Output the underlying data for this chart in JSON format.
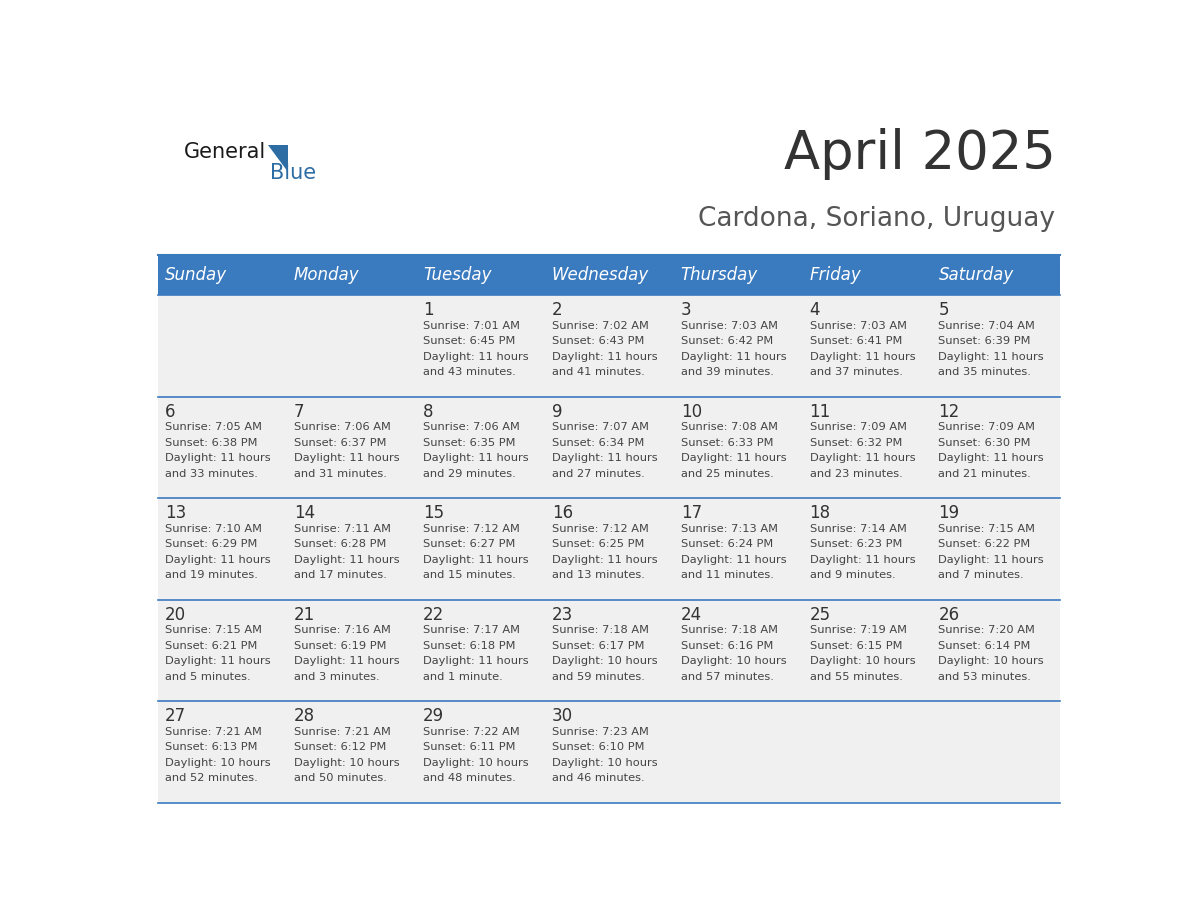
{
  "title": "April 2025",
  "subtitle": "Cardona, Soriano, Uruguay",
  "header_color": "#3a7abf",
  "header_text_color": "#ffffff",
  "cell_bg_color": "#f0f0f0",
  "day_names": [
    "Sunday",
    "Monday",
    "Tuesday",
    "Wednesday",
    "Thursday",
    "Friday",
    "Saturday"
  ],
  "title_color": "#333333",
  "subtitle_color": "#555555",
  "line_color": "#3a7abf",
  "day_number_color": "#333333",
  "info_color": "#444444",
  "logo_general_color": "#1a1a1a",
  "logo_blue_color": "#2e6da4",
  "triangle_color": "#2e6da4",
  "weeks": [
    [
      {
        "day": "",
        "sunrise": "",
        "sunset": "",
        "daylight_line1": "",
        "daylight_line2": ""
      },
      {
        "day": "",
        "sunrise": "",
        "sunset": "",
        "daylight_line1": "",
        "daylight_line2": ""
      },
      {
        "day": "1",
        "sunrise": "Sunrise: 7:01 AM",
        "sunset": "Sunset: 6:45 PM",
        "daylight_line1": "Daylight: 11 hours",
        "daylight_line2": "and 43 minutes."
      },
      {
        "day": "2",
        "sunrise": "Sunrise: 7:02 AM",
        "sunset": "Sunset: 6:43 PM",
        "daylight_line1": "Daylight: 11 hours",
        "daylight_line2": "and 41 minutes."
      },
      {
        "day": "3",
        "sunrise": "Sunrise: 7:03 AM",
        "sunset": "Sunset: 6:42 PM",
        "daylight_line1": "Daylight: 11 hours",
        "daylight_line2": "and 39 minutes."
      },
      {
        "day": "4",
        "sunrise": "Sunrise: 7:03 AM",
        "sunset": "Sunset: 6:41 PM",
        "daylight_line1": "Daylight: 11 hours",
        "daylight_line2": "and 37 minutes."
      },
      {
        "day": "5",
        "sunrise": "Sunrise: 7:04 AM",
        "sunset": "Sunset: 6:39 PM",
        "daylight_line1": "Daylight: 11 hours",
        "daylight_line2": "and 35 minutes."
      }
    ],
    [
      {
        "day": "6",
        "sunrise": "Sunrise: 7:05 AM",
        "sunset": "Sunset: 6:38 PM",
        "daylight_line1": "Daylight: 11 hours",
        "daylight_line2": "and 33 minutes."
      },
      {
        "day": "7",
        "sunrise": "Sunrise: 7:06 AM",
        "sunset": "Sunset: 6:37 PM",
        "daylight_line1": "Daylight: 11 hours",
        "daylight_line2": "and 31 minutes."
      },
      {
        "day": "8",
        "sunrise": "Sunrise: 7:06 AM",
        "sunset": "Sunset: 6:35 PM",
        "daylight_line1": "Daylight: 11 hours",
        "daylight_line2": "and 29 minutes."
      },
      {
        "day": "9",
        "sunrise": "Sunrise: 7:07 AM",
        "sunset": "Sunset: 6:34 PM",
        "daylight_line1": "Daylight: 11 hours",
        "daylight_line2": "and 27 minutes."
      },
      {
        "day": "10",
        "sunrise": "Sunrise: 7:08 AM",
        "sunset": "Sunset: 6:33 PM",
        "daylight_line1": "Daylight: 11 hours",
        "daylight_line2": "and 25 minutes."
      },
      {
        "day": "11",
        "sunrise": "Sunrise: 7:09 AM",
        "sunset": "Sunset: 6:32 PM",
        "daylight_line1": "Daylight: 11 hours",
        "daylight_line2": "and 23 minutes."
      },
      {
        "day": "12",
        "sunrise": "Sunrise: 7:09 AM",
        "sunset": "Sunset: 6:30 PM",
        "daylight_line1": "Daylight: 11 hours",
        "daylight_line2": "and 21 minutes."
      }
    ],
    [
      {
        "day": "13",
        "sunrise": "Sunrise: 7:10 AM",
        "sunset": "Sunset: 6:29 PM",
        "daylight_line1": "Daylight: 11 hours",
        "daylight_line2": "and 19 minutes."
      },
      {
        "day": "14",
        "sunrise": "Sunrise: 7:11 AM",
        "sunset": "Sunset: 6:28 PM",
        "daylight_line1": "Daylight: 11 hours",
        "daylight_line2": "and 17 minutes."
      },
      {
        "day": "15",
        "sunrise": "Sunrise: 7:12 AM",
        "sunset": "Sunset: 6:27 PM",
        "daylight_line1": "Daylight: 11 hours",
        "daylight_line2": "and 15 minutes."
      },
      {
        "day": "16",
        "sunrise": "Sunrise: 7:12 AM",
        "sunset": "Sunset: 6:25 PM",
        "daylight_line1": "Daylight: 11 hours",
        "daylight_line2": "and 13 minutes."
      },
      {
        "day": "17",
        "sunrise": "Sunrise: 7:13 AM",
        "sunset": "Sunset: 6:24 PM",
        "daylight_line1": "Daylight: 11 hours",
        "daylight_line2": "and 11 minutes."
      },
      {
        "day": "18",
        "sunrise": "Sunrise: 7:14 AM",
        "sunset": "Sunset: 6:23 PM",
        "daylight_line1": "Daylight: 11 hours",
        "daylight_line2": "and 9 minutes."
      },
      {
        "day": "19",
        "sunrise": "Sunrise: 7:15 AM",
        "sunset": "Sunset: 6:22 PM",
        "daylight_line1": "Daylight: 11 hours",
        "daylight_line2": "and 7 minutes."
      }
    ],
    [
      {
        "day": "20",
        "sunrise": "Sunrise: 7:15 AM",
        "sunset": "Sunset: 6:21 PM",
        "daylight_line1": "Daylight: 11 hours",
        "daylight_line2": "and 5 minutes."
      },
      {
        "day": "21",
        "sunrise": "Sunrise: 7:16 AM",
        "sunset": "Sunset: 6:19 PM",
        "daylight_line1": "Daylight: 11 hours",
        "daylight_line2": "and 3 minutes."
      },
      {
        "day": "22",
        "sunrise": "Sunrise: 7:17 AM",
        "sunset": "Sunset: 6:18 PM",
        "daylight_line1": "Daylight: 11 hours",
        "daylight_line2": "and 1 minute."
      },
      {
        "day": "23",
        "sunrise": "Sunrise: 7:18 AM",
        "sunset": "Sunset: 6:17 PM",
        "daylight_line1": "Daylight: 10 hours",
        "daylight_line2": "and 59 minutes."
      },
      {
        "day": "24",
        "sunrise": "Sunrise: 7:18 AM",
        "sunset": "Sunset: 6:16 PM",
        "daylight_line1": "Daylight: 10 hours",
        "daylight_line2": "and 57 minutes."
      },
      {
        "day": "25",
        "sunrise": "Sunrise: 7:19 AM",
        "sunset": "Sunset: 6:15 PM",
        "daylight_line1": "Daylight: 10 hours",
        "daylight_line2": "and 55 minutes."
      },
      {
        "day": "26",
        "sunrise": "Sunrise: 7:20 AM",
        "sunset": "Sunset: 6:14 PM",
        "daylight_line1": "Daylight: 10 hours",
        "daylight_line2": "and 53 minutes."
      }
    ],
    [
      {
        "day": "27",
        "sunrise": "Sunrise: 7:21 AM",
        "sunset": "Sunset: 6:13 PM",
        "daylight_line1": "Daylight: 10 hours",
        "daylight_line2": "and 52 minutes."
      },
      {
        "day": "28",
        "sunrise": "Sunrise: 7:21 AM",
        "sunset": "Sunset: 6:12 PM",
        "daylight_line1": "Daylight: 10 hours",
        "daylight_line2": "and 50 minutes."
      },
      {
        "day": "29",
        "sunrise": "Sunrise: 7:22 AM",
        "sunset": "Sunset: 6:11 PM",
        "daylight_line1": "Daylight: 10 hours",
        "daylight_line2": "and 48 minutes."
      },
      {
        "day": "30",
        "sunrise": "Sunrise: 7:23 AM",
        "sunset": "Sunset: 6:10 PM",
        "daylight_line1": "Daylight: 10 hours",
        "daylight_line2": "and 46 minutes."
      },
      {
        "day": "",
        "sunrise": "",
        "sunset": "",
        "daylight_line1": "",
        "daylight_line2": ""
      },
      {
        "day": "",
        "sunrise": "",
        "sunset": "",
        "daylight_line1": "",
        "daylight_line2": ""
      },
      {
        "day": "",
        "sunrise": "",
        "sunset": "",
        "daylight_line1": "",
        "daylight_line2": ""
      }
    ]
  ]
}
